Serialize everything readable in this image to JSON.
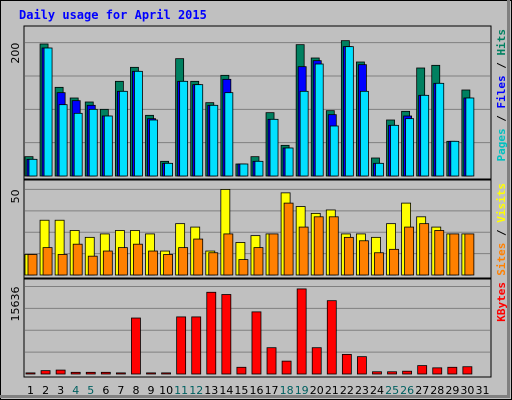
{
  "title": "Daily usage for April 2015",
  "chart_data": {
    "type": "bar",
    "categories": [
      "1",
      "2",
      "3",
      "4",
      "5",
      "6",
      "7",
      "8",
      "9",
      "10",
      "11",
      "12",
      "13",
      "14",
      "15",
      "16",
      "17",
      "18",
      "19",
      "20",
      "21",
      "22",
      "23",
      "24",
      "25",
      "26",
      "27",
      "28",
      "29",
      "30",
      "31"
    ],
    "weekend_days": [
      4,
      5,
      11,
      12,
      18,
      19,
      25,
      26
    ],
    "weekend_color": "#006060",
    "weekday_color": "#000000",
    "panels": [
      {
        "name": "hits-files-pages",
        "ytick_label": "200",
        "ytick_value": 200,
        "ymax": 216,
        "legend": [
          {
            "text": "Pages",
            "color": "#00c0c0"
          },
          {
            "text": " / ",
            "color": "#000000"
          },
          {
            "text": "Files",
            "color": "#0000ff"
          },
          {
            "text": " / ",
            "color": "#000000"
          },
          {
            "text": "Hits",
            "color": "#008060"
          }
        ],
        "series": [
          {
            "name": "Hits",
            "color": "#008060",
            "values": [
              29,
              198,
              133,
              117,
              111,
              100,
              142,
              163,
              91,
              22,
              176,
              142,
              110,
              151,
              18,
              29,
              95,
              46,
              197,
              177,
              98,
              203,
              171,
              27,
              84,
              97,
              162,
              166,
              52,
              129,
              0
            ]
          },
          {
            "name": "Files",
            "color": "#0000ff",
            "values": [
              25,
              192,
              125,
              113,
              106,
              90,
              127,
              157,
              86,
              19,
              142,
              137,
              106,
              145,
              18,
              22,
              85,
              42,
              164,
              173,
              92,
              194,
              167,
              19,
              76,
              90,
              121,
              139,
              52,
              117,
              0
            ]
          },
          {
            "name": "Pages",
            "color": "#00e0ff",
            "values": [
              25,
              192,
              107,
              94,
              100,
              90,
              127,
              157,
              84,
              19,
              142,
              137,
              106,
              125,
              18,
              22,
              85,
              42,
              127,
              168,
              75,
              194,
              127,
              19,
              76,
              86,
              121,
              139,
              52,
              117,
              0
            ]
          }
        ]
      },
      {
        "name": "visits-sites",
        "ytick_label": "50",
        "ytick_value": 50,
        "ymax": 52,
        "legend": [
          {
            "text": "Sites",
            "color": "#ff8000"
          },
          {
            "text": " / ",
            "color": "#000000"
          },
          {
            "text": "Visits",
            "color": "#ffff00"
          }
        ],
        "series": [
          {
            "name": "Visits",
            "color": "#ffff00",
            "values": [
              12,
              32,
              32,
              26,
              22,
              24,
              26,
              26,
              24,
              14,
              30,
              28,
              14,
              50,
              19,
              23,
              24,
              48,
              40,
              36,
              38,
              24,
              24,
              22,
              30,
              42,
              34,
              28,
              24,
              24,
              0
            ]
          },
          {
            "name": "Sites",
            "color": "#ff8000",
            "values": [
              12,
              16,
              12,
              18,
              11,
              14,
              16,
              18,
              14,
              12,
              16,
              21,
              13,
              24,
              9,
              16,
              24,
              42,
              28,
              34,
              34,
              22,
              20,
              13,
              15,
              28,
              30,
              26,
              24,
              24,
              0
            ]
          }
        ]
      },
      {
        "name": "kbytes",
        "ytick_label": "15636",
        "ytick_value": 15636,
        "ymax": 15900,
        "legend": [
          {
            "text": "KBytes",
            "color": "#ff0000"
          }
        ],
        "series": [
          {
            "name": "KBytes",
            "color": "#ff0000",
            "values": [
              200,
              600,
              700,
              300,
              300,
              300,
              200,
              10000,
              200,
              200,
              10200,
              10200,
              14600,
              14200,
              1200,
              11100,
              4700,
              2300,
              15200,
              4700,
              13100,
              3500,
              3100,
              400,
              400,
              500,
              1500,
              1100,
              1200,
              1300,
              0
            ]
          }
        ]
      }
    ]
  }
}
